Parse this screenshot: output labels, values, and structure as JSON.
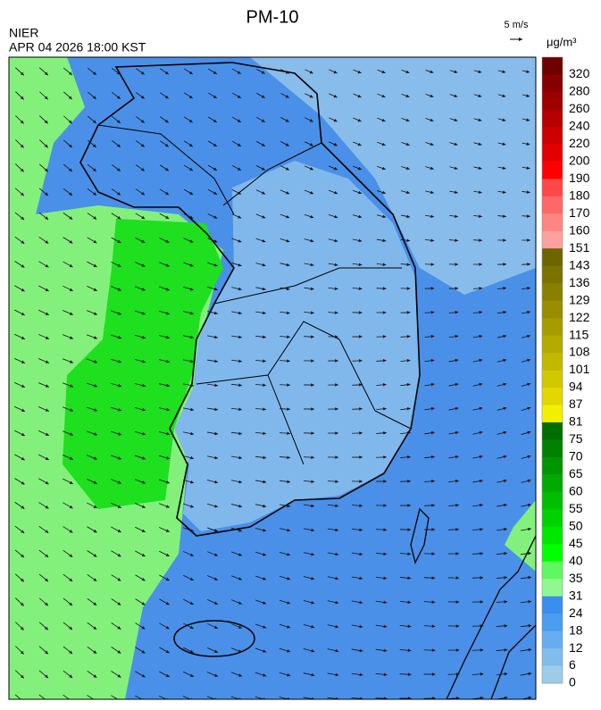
{
  "header": {
    "title": "PM-10",
    "source": "NIER",
    "datetime": "APR 04 2026 18:00 KST",
    "wind_scale": "5 m/s"
  },
  "legend": {
    "unit": "μg/m³",
    "levels": [
      320,
      280,
      260,
      240,
      220,
      200,
      190,
      180,
      170,
      160,
      151,
      143,
      136,
      129,
      122,
      115,
      108,
      101,
      94,
      87,
      81,
      75,
      70,
      65,
      60,
      55,
      50,
      45,
      40,
      35,
      31,
      24,
      18,
      12,
      6,
      0
    ],
    "colors": [
      "#6e0000",
      "#860000",
      "#9e0000",
      "#b40000",
      "#cc0000",
      "#e40000",
      "#ff0000",
      "#ff4848",
      "#ff6868",
      "#ff8484",
      "#ffa0a0",
      "#6e6400",
      "#7c7200",
      "#8a8000",
      "#988e00",
      "#a69c00",
      "#b4aa00",
      "#c2b800",
      "#d2c800",
      "#e2d800",
      "#f2f000",
      "#006e00",
      "#008200",
      "#009600",
      "#00aa00",
      "#00be00",
      "#00d200",
      "#00e800",
      "#00ff00",
      "#60f860",
      "#90f890",
      "#3a8ef0",
      "#4c9cf0",
      "#66acf0",
      "#80bcec",
      "#9ccce8"
    ]
  }
}
